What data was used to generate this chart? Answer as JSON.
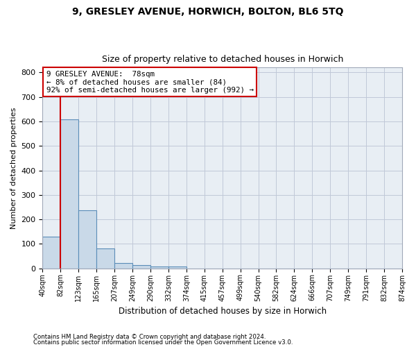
{
  "title": "9, GRESLEY AVENUE, HORWICH, BOLTON, BL6 5TQ",
  "subtitle": "Size of property relative to detached houses in Horwich",
  "xlabel": "Distribution of detached houses by size in Horwich",
  "ylabel": "Number of detached properties",
  "bin_labels": [
    "40sqm",
    "82sqm",
    "123sqm",
    "165sqm",
    "207sqm",
    "249sqm",
    "290sqm",
    "332sqm",
    "374sqm",
    "415sqm",
    "457sqm",
    "499sqm",
    "540sqm",
    "582sqm",
    "624sqm",
    "666sqm",
    "707sqm",
    "749sqm",
    "791sqm",
    "832sqm",
    "874sqm"
  ],
  "bar_heights": [
    128,
    607,
    237,
    80,
    21,
    12,
    8,
    8,
    0,
    0,
    0,
    0,
    0,
    0,
    0,
    0,
    0,
    0,
    0,
    0
  ],
  "bar_color": "#c9d9e8",
  "bar_edge_color": "#5b8db8",
  "ylim": [
    0,
    820
  ],
  "yticks": [
    0,
    100,
    200,
    300,
    400,
    500,
    600,
    700,
    800
  ],
  "property_line_x": 1.0,
  "property_sqm": 78,
  "annotation_line1": "9 GRESLEY AVENUE:  78sqm",
  "annotation_line2": "← 8% of detached houses are smaller (84)",
  "annotation_line3": "92% of semi-detached houses are larger (992) →",
  "annotation_box_color": "#ffffff",
  "annotation_box_edge_color": "#cc0000",
  "grid_color": "#c0c8d8",
  "background_color": "#e8eef4",
  "footer_line1": "Contains HM Land Registry data © Crown copyright and database right 2024.",
  "footer_line2": "Contains public sector information licensed under the Open Government Licence v3.0."
}
